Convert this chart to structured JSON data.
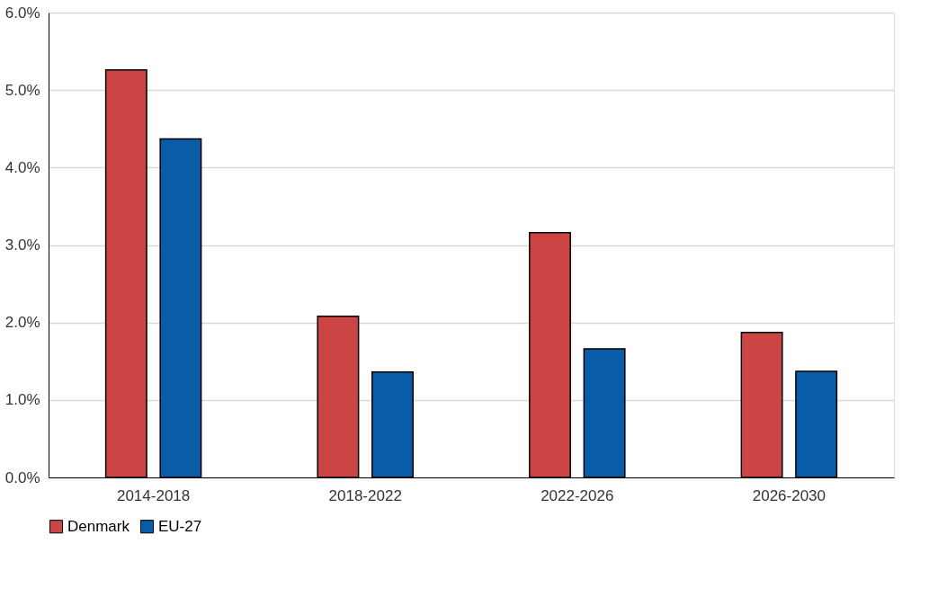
{
  "chart_data": {
    "type": "bar",
    "categories": [
      "2014-2018",
      "2018-2022",
      "2022-2026",
      "2026-2030"
    ],
    "series": [
      {
        "name": "Denmark",
        "color": "#cc4444",
        "values": [
          5.26,
          2.08,
          3.16,
          1.87
        ]
      },
      {
        "name": "EU-27",
        "color": "#0b5ca8",
        "values": [
          4.37,
          1.36,
          1.66,
          1.37
        ]
      }
    ],
    "ylim": [
      0,
      6
    ],
    "yticks": [
      {
        "value": 0,
        "label": "0.0%"
      },
      {
        "value": 1,
        "label": "1.0%"
      },
      {
        "value": 2,
        "label": "2.0%"
      },
      {
        "value": 3,
        "label": "3.0%"
      },
      {
        "value": 4,
        "label": "4.0%"
      },
      {
        "value": 5,
        "label": "5.0%"
      },
      {
        "value": 6,
        "label": "6.0%"
      }
    ],
    "grid": "y",
    "legend": "bottom"
  }
}
